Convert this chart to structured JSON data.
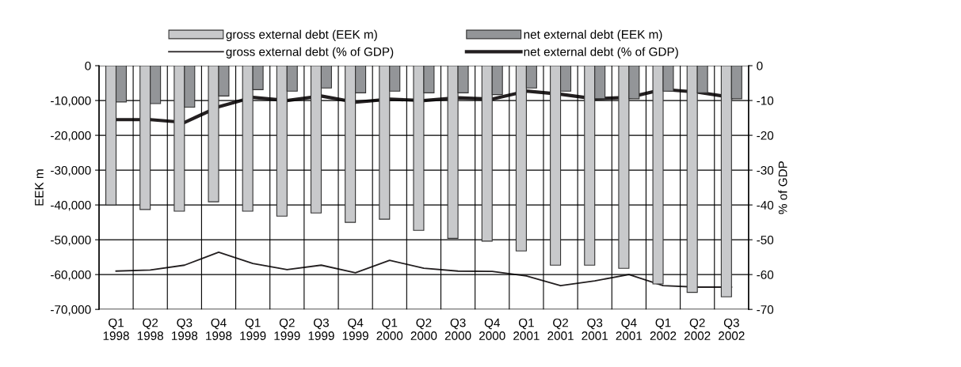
{
  "chart_data": {
    "type": "bar",
    "ylabel": "EEK m",
    "y2label": "% of GDP",
    "categories": [
      "Q1\n1998",
      "Q2\n1998",
      "Q3\n1998",
      "Q4\n1998",
      "Q1\n1999",
      "Q2\n1999",
      "Q3\n1999",
      "Q4\n1999",
      "Q1\n2000",
      "Q2\n2000",
      "Q3\n2000",
      "Q4\n2000",
      "Q1\n2001",
      "Q2\n2001",
      "Q3\n2001",
      "Q4\n2001",
      "Q1\n2002",
      "Q2\n2002",
      "Q3\n2002"
    ],
    "series": [
      {
        "name": "gross external debt (EEK m)",
        "color": "#c8c9cb",
        "values": [
          -40000,
          -41300,
          -41800,
          -39100,
          -41800,
          -43200,
          -42300,
          -45000,
          -44100,
          -47300,
          -49600,
          -50400,
          -53200,
          -57300,
          -57300,
          -58200,
          -62700,
          -65100,
          -66400
        ]
      },
      {
        "name": "net external debt (EEK m)",
        "color": "#939598",
        "values": [
          -10400,
          -10900,
          -11900,
          -8700,
          -6900,
          -7300,
          -6400,
          -7800,
          -7300,
          -7800,
          -7800,
          -8300,
          -6400,
          -7300,
          -9500,
          -9500,
          -7300,
          -7800,
          -9500
        ]
      },
      {
        "name": "gross external debt (% of GDP)",
        "type": "line",
        "axis": "y2",
        "color": "#231f20",
        "values": [
          -59,
          -58.7,
          -57.3,
          -53.6,
          -56.8,
          -58.6,
          -57.3,
          -59.5,
          -55.9,
          -58.2,
          -59,
          -59.1,
          -60.4,
          -63.2,
          -61.8,
          -60,
          -63.2,
          -63.6,
          -63.6
        ]
      },
      {
        "name": "net external debt (% of GDP)",
        "type": "line",
        "axis": "y2",
        "color": "#231f20",
        "values": [
          -15.5,
          -15.5,
          -16.3,
          -11.8,
          -9.1,
          -10,
          -8.7,
          -10.5,
          -9.6,
          -10,
          -9.2,
          -9.6,
          -7.3,
          -8.2,
          -9.5,
          -9.1,
          -6.8,
          -7.6,
          -9.1
        ]
      }
    ],
    "ylim": [
      -70000,
      0
    ],
    "yticks": [
      {
        "value": -70000,
        "label": "-70,000"
      },
      {
        "value": -60000,
        "label": "-60,000"
      },
      {
        "value": -50000,
        "label": "-50,000"
      },
      {
        "value": -40000,
        "label": "-40,000"
      },
      {
        "value": -30000,
        "label": "-30,000"
      },
      {
        "value": -20000,
        "label": "-20,000"
      },
      {
        "value": -10000,
        "label": "-10,000"
      },
      0
    ],
    "y2lim": [
      -70,
      0
    ],
    "y2ticks": [
      -70,
      -60,
      -50,
      -40,
      -30,
      -20,
      -10,
      0
    ],
    "grid": true,
    "legend": "top",
    "marker": "none",
    "line_style": "solid"
  }
}
